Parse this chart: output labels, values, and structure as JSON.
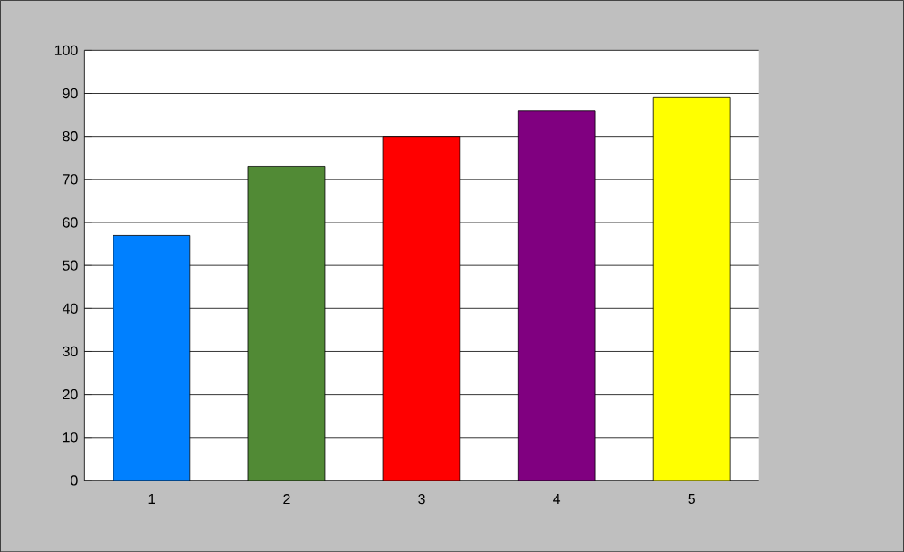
{
  "chart_data": {
    "type": "bar",
    "categories": [
      "1",
      "2",
      "3",
      "4",
      "5"
    ],
    "values": [
      57,
      73,
      80,
      86,
      89
    ],
    "colors": [
      "#0080ff",
      "#518a35",
      "#ff0000",
      "#800080",
      "#ffff00"
    ],
    "ylim": [
      0,
      100
    ],
    "yticks": [
      0,
      10,
      20,
      30,
      40,
      50,
      60,
      70,
      80,
      90,
      100
    ],
    "grid": "y"
  }
}
